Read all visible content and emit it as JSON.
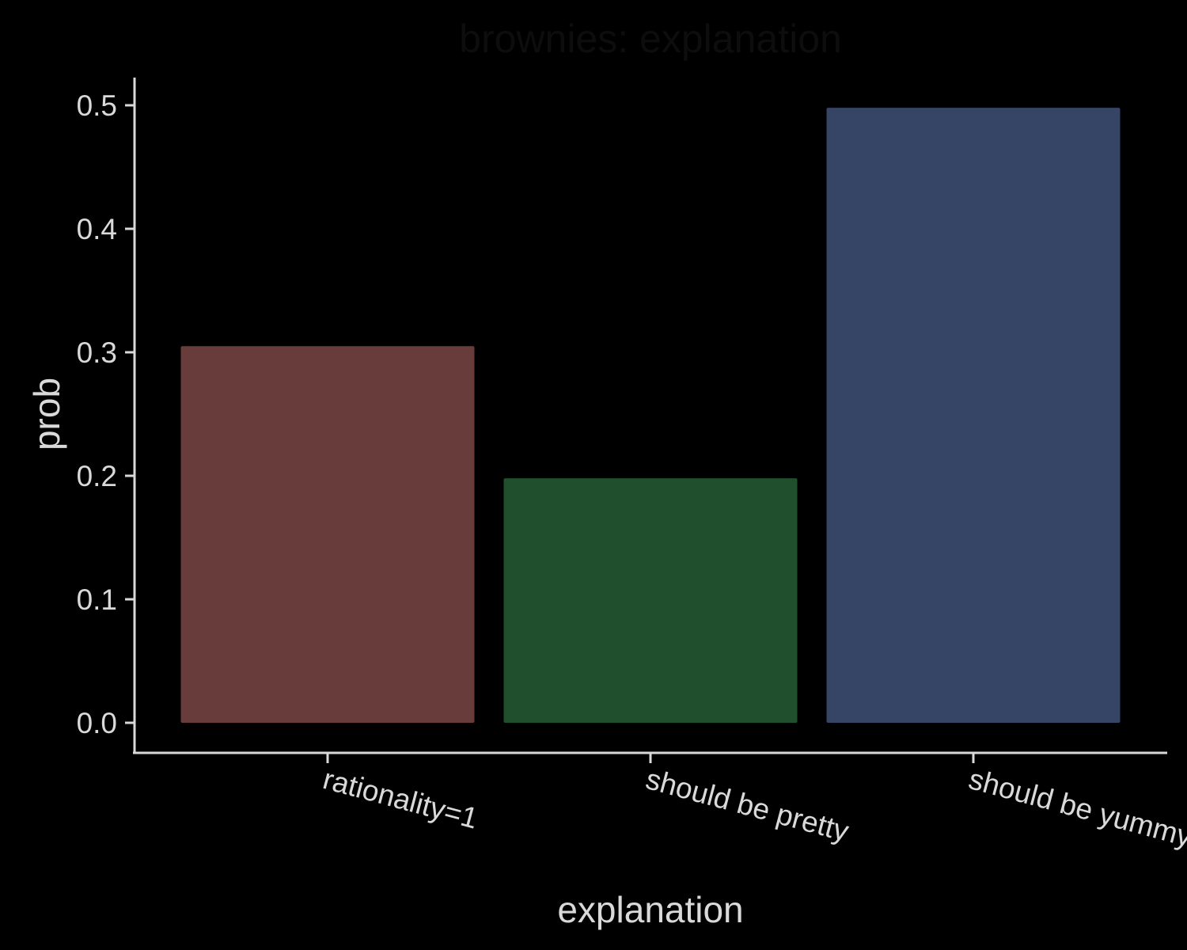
{
  "chart_data": {
    "type": "bar",
    "title": "brownies: explanation",
    "xlabel": "explanation",
    "ylabel": "prob",
    "categories": [
      "rationality=1",
      "should be pretty",
      "should be yummy"
    ],
    "values": [
      0.305,
      0.198,
      0.498
    ],
    "colors": [
      "#683c3a",
      "#1f4f2d",
      "#364465"
    ],
    "ylim": [
      0,
      0.5
    ],
    "yticks": [
      "0.0",
      "0.1",
      "0.2",
      "0.3",
      "0.4",
      "0.5"
    ],
    "grid": false,
    "legend": "none",
    "background": "#000000",
    "axis_color": "#d9d9d9"
  }
}
